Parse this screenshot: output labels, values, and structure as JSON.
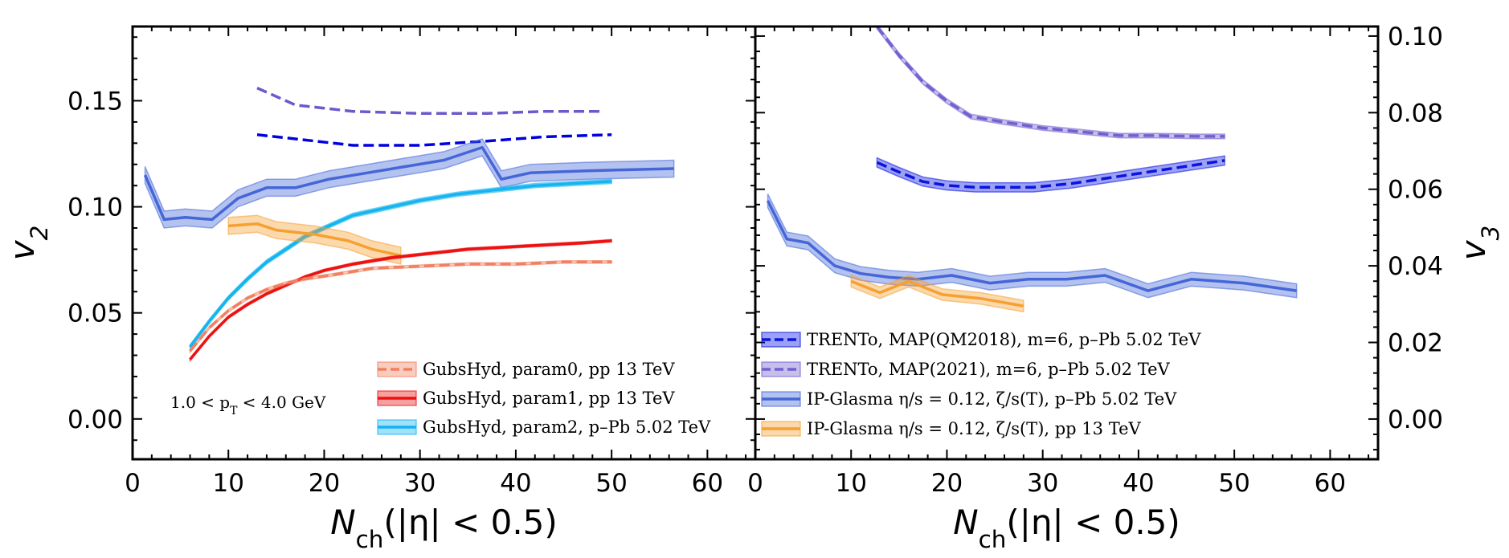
{
  "chart_data": [
    {
      "type": "line",
      "panel": "left",
      "xlabel": "N_ch(|η| < 0.5)",
      "ylabel": "v_2",
      "xlim": [
        0,
        65
      ],
      "ylim": [
        -0.019,
        0.185
      ],
      "xticks": [
        "0",
        "10",
        "20",
        "30",
        "40",
        "50",
        "60"
      ],
      "yticks": [
        "0.00",
        "0.05",
        "0.10",
        "0.15"
      ],
      "grid": false,
      "legend_position": "bottom-right",
      "annotation": "1.0 < p_T < 4.0 GeV",
      "series": [
        {
          "name": "",
          "color": "#6a5acd",
          "dash": true,
          "x": [
            13,
            17,
            23,
            30,
            37,
            43,
            49
          ],
          "y": [
            0.156,
            0.148,
            0.145,
            0.144,
            0.144,
            0.145,
            0.145
          ]
        },
        {
          "name": "",
          "color": "#0000e0",
          "dash": true,
          "x": [
            13,
            17,
            23,
            30,
            37,
            43,
            50
          ],
          "y": [
            0.134,
            0.132,
            0.129,
            0.129,
            0.131,
            0.133,
            0.134
          ]
        },
        {
          "name": "",
          "color": "#4466d8",
          "dash": false,
          "band": 0.004,
          "x": [
            1.3,
            3.3,
            5.5,
            8.3,
            11,
            14,
            17,
            20.5,
            24.5,
            28.5,
            32.5,
            36.5,
            38.5,
            41.5,
            47.5,
            56.5
          ],
          "y": [
            0.115,
            0.094,
            0.095,
            0.094,
            0.104,
            0.109,
            0.109,
            0.113,
            0.116,
            0.119,
            0.122,
            0.128,
            0.113,
            0.116,
            0.117,
            0.118
          ]
        },
        {
          "name": "GubsHyd, param2, p–Pb 5.02 TeV",
          "color": "#14b4f0",
          "dash": false,
          "band": 0.001,
          "x": [
            6,
            8,
            10,
            12,
            14,
            16,
            18,
            20,
            23,
            26,
            30,
            34,
            38,
            42,
            46,
            50
          ],
          "y": [
            0.034,
            0.046,
            0.057,
            0.066,
            0.074,
            0.08,
            0.086,
            0.09,
            0.096,
            0.099,
            0.103,
            0.106,
            0.108,
            0.11,
            0.111,
            0.112
          ]
        },
        {
          "name": "",
          "color": "#f5a031",
          "dash": false,
          "band": 0.004,
          "x": [
            10,
            13,
            15,
            19,
            22.5,
            25,
            28
          ],
          "y": [
            0.091,
            0.092,
            0.089,
            0.087,
            0.084,
            0.08,
            0.077
          ]
        },
        {
          "name": "GubsHyd, param1, pp 13 TeV",
          "color": "#ee1111",
          "dash": false,
          "band": 0.0006,
          "x": [
            6,
            8,
            10,
            12,
            14,
            16,
            18,
            20,
            23,
            27,
            31,
            35,
            39,
            43,
            47,
            50
          ],
          "y": [
            0.028,
            0.039,
            0.048,
            0.054,
            0.059,
            0.063,
            0.067,
            0.07,
            0.073,
            0.076,
            0.078,
            0.08,
            0.081,
            0.082,
            0.083,
            0.084
          ]
        },
        {
          "name": "GubsHyd, param0, pp 13 TeV",
          "color": "#f08060",
          "dash": true,
          "band": 0.0006,
          "x": [
            6,
            8,
            10,
            12,
            14,
            16,
            18,
            21,
            25,
            30,
            35,
            40,
            45,
            50
          ],
          "y": [
            0.032,
            0.043,
            0.051,
            0.057,
            0.061,
            0.064,
            0.066,
            0.068,
            0.071,
            0.072,
            0.073,
            0.073,
            0.074,
            0.074
          ]
        }
      ]
    },
    {
      "type": "line",
      "panel": "right",
      "xlabel": "N_ch(|η| < 0.5)",
      "ylabel": "v_3",
      "xlim": [
        0,
        65
      ],
      "ylim": [
        -0.0105,
        0.1025
      ],
      "xticks": [
        "0",
        "10",
        "20",
        "30",
        "40",
        "50",
        "60"
      ],
      "yticks": [
        "0.00",
        "0.02",
        "0.04",
        "0.06",
        "0.08",
        "0.10"
      ],
      "grid": false,
      "legend_position": "bottom-left",
      "series": [
        {
          "name": "TRENTo, MAP(2021), m=6, p–Pb 5.02 TeV",
          "color": "#7060d0",
          "dash": true,
          "band": 0.0006,
          "x": [
            12.7,
            15,
            17.5,
            20,
            22.5,
            26,
            30,
            34,
            38,
            42,
            46,
            49
          ],
          "y": [
            0.1025,
            0.095,
            0.088,
            0.083,
            0.079,
            0.0775,
            0.076,
            0.075,
            0.074,
            0.074,
            0.0738,
            0.0738
          ]
        },
        {
          "name": "TRENTo, MAP(QM2018), m=6, p–Pb 5.02 TeV",
          "color": "#0a14e0",
          "dash": true,
          "band": 0.0012,
          "x": [
            12.7,
            15,
            17.5,
            20,
            23,
            26,
            29,
            33,
            37,
            41,
            45,
            49
          ],
          "y": [
            0.067,
            0.0645,
            0.062,
            0.061,
            0.0605,
            0.0605,
            0.0605,
            0.0615,
            0.063,
            0.0645,
            0.066,
            0.0675
          ]
        },
        {
          "name": "IP-Glasma η/s = 0.12, ζ/s(T), p–Pb 5.02 TeV",
          "color": "#4466d8",
          "dash": false,
          "band": 0.0018,
          "x": [
            1.3,
            3.3,
            5.5,
            8.3,
            11,
            14,
            17,
            20.5,
            24.5,
            28.5,
            32.5,
            36.5,
            41,
            45.5,
            51,
            56.5
          ],
          "y": [
            0.057,
            0.047,
            0.046,
            0.04,
            0.038,
            0.037,
            0.0365,
            0.0375,
            0.0355,
            0.0365,
            0.0365,
            0.0375,
            0.0335,
            0.0365,
            0.0355,
            0.0335
          ]
        },
        {
          "name": "IP-Glasma η/s = 0.12, ζ/s(T), pp 13 TeV",
          "color": "#f5a031",
          "dash": false,
          "band": 0.0015,
          "x": [
            10,
            13,
            16,
            19.5,
            23.5,
            28
          ],
          "y": [
            0.036,
            0.033,
            0.036,
            0.0325,
            0.0315,
            0.0295
          ]
        }
      ]
    }
  ],
  "legend_left": [
    {
      "text": "GubsHyd, param0, pp 13 TeV",
      "color": "#f08060",
      "dash": true
    },
    {
      "text": "GubsHyd, param1, pp 13 TeV",
      "color": "#ee1111",
      "dash": false
    },
    {
      "text": "GubsHyd, param2, p–Pb 5.02 TeV",
      "color": "#14b4f0",
      "dash": false
    }
  ],
  "legend_right": [
    {
      "text": "TRENTo, MAP(QM2018), m=6, p–Pb 5.02 TeV",
      "color": "#0a14e0",
      "dash": true
    },
    {
      "text": "TRENTo, MAP(2021), m=6, p–Pb 5.02 TeV",
      "color": "#7060d0",
      "dash": true
    },
    {
      "text": "IP-Glasma η/s = 0.12, ζ/s(T), p–Pb 5.02 TeV",
      "color": "#4466d8",
      "dash": false
    },
    {
      "text": "IP-Glasma η/s = 0.12, ζ/s(T), pp 13 TeV",
      "color": "#f5a031",
      "dash": false
    }
  ]
}
